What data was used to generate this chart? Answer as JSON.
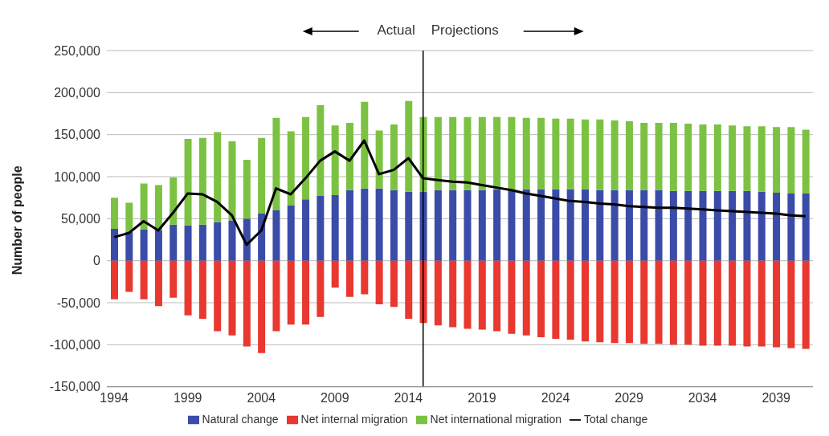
{
  "chart_data": {
    "type": "bar",
    "stacked": true,
    "ylabel": "Number of people",
    "x": [
      1994,
      1995,
      1996,
      1997,
      1998,
      1999,
      2000,
      2001,
      2002,
      2003,
      2004,
      2005,
      2006,
      2007,
      2008,
      2009,
      2010,
      2011,
      2012,
      2013,
      2014,
      2015,
      2016,
      2017,
      2018,
      2019,
      2020,
      2021,
      2022,
      2023,
      2024,
      2025,
      2026,
      2027,
      2028,
      2029,
      2030,
      2031,
      2032,
      2033,
      2034,
      2035,
      2036,
      2037,
      2038,
      2039,
      2040,
      2041
    ],
    "series": [
      {
        "name": "Natural change",
        "color": "#3b4ba8",
        "values": [
          38000,
          34000,
          37000,
          36000,
          43000,
          42000,
          43000,
          46000,
          48000,
          50000,
          56000,
          60000,
          66000,
          73000,
          77000,
          78000,
          84000,
          86000,
          86000,
          84000,
          82000,
          82000,
          84000,
          84000,
          84000,
          84000,
          85000,
          85000,
          85000,
          85000,
          85000,
          85000,
          85000,
          84000,
          84000,
          84000,
          84000,
          84000,
          83000,
          83000,
          83000,
          83000,
          83000,
          83000,
          82000,
          81000,
          80000,
          80000
        ]
      },
      {
        "name": "Net internal migration",
        "color": "#e8382f",
        "values": [
          -46000,
          -37000,
          -46000,
          -54000,
          -44000,
          -65000,
          -69000,
          -84000,
          -89000,
          -102000,
          -110000,
          -84000,
          -76000,
          -76000,
          -67000,
          -32000,
          -43000,
          -40000,
          -52000,
          -55000,
          -69000,
          -74000,
          -77000,
          -79000,
          -81000,
          -82000,
          -84000,
          -87000,
          -89000,
          -91000,
          -93000,
          -94000,
          -96000,
          -97000,
          -98000,
          -98000,
          -99000,
          -99000,
          -100000,
          -100000,
          -101000,
          -101000,
          -101000,
          -102000,
          -102000,
          -103000,
          -104000,
          -105000
        ]
      },
      {
        "name": "Net international migration",
        "color": "#7cc242",
        "values": [
          37000,
          35000,
          55000,
          54000,
          56000,
          103000,
          103000,
          107000,
          94000,
          70000,
          90000,
          110000,
          88000,
          98000,
          108000,
          83000,
          80000,
          103000,
          69000,
          78000,
          108000,
          89000,
          87000,
          87000,
          87000,
          87000,
          86000,
          86000,
          85000,
          85000,
          84000,
          84000,
          83000,
          84000,
          83000,
          82000,
          80000,
          80000,
          81000,
          80000,
          79000,
          79000,
          78000,
          77000,
          78000,
          78000,
          79000,
          76000
        ]
      },
      {
        "name": "Total change",
        "type": "line",
        "color": "#000000",
        "values": [
          28000,
          33000,
          47000,
          36000,
          57000,
          80000,
          79000,
          70000,
          54000,
          19000,
          36000,
          86000,
          79000,
          98000,
          119000,
          130000,
          119000,
          143000,
          103000,
          108000,
          122000,
          98000,
          96000,
          94000,
          93000,
          90000,
          87000,
          84000,
          80000,
          77000,
          74000,
          71000,
          70000,
          68000,
          67000,
          65000,
          64000,
          63000,
          63000,
          62000,
          61000,
          60000,
          59000,
          58000,
          57000,
          56000,
          54000,
          53000
        ]
      }
    ],
    "xlim": [
      1993.5,
      2041.5
    ],
    "xticks": [
      1994,
      1999,
      2004,
      2009,
      2014,
      2019,
      2024,
      2029,
      2034,
      2039
    ],
    "ylim": [
      -150000,
      250000
    ],
    "yticks": [
      {
        "value": -150000,
        "label": "-150,000"
      },
      {
        "value": -100000,
        "label": "-100,000"
      },
      {
        "value": -50000,
        "label": "-50,000"
      },
      0,
      {
        "value": 50000,
        "label": "50,000"
      },
      {
        "value": 100000,
        "label": "100,000"
      },
      {
        "value": 150000,
        "label": "150,000"
      },
      {
        "value": 200000,
        "label": "200,000"
      },
      {
        "value": 250000,
        "label": "250,000"
      }
    ],
    "grid": "y",
    "legend": "bottom",
    "marker": "none",
    "ref_lines": [
      {
        "axis": "x",
        "value": 2015,
        "color": "#000000"
      }
    ],
    "annotations": [
      "Actual",
      "Projections"
    ]
  }
}
